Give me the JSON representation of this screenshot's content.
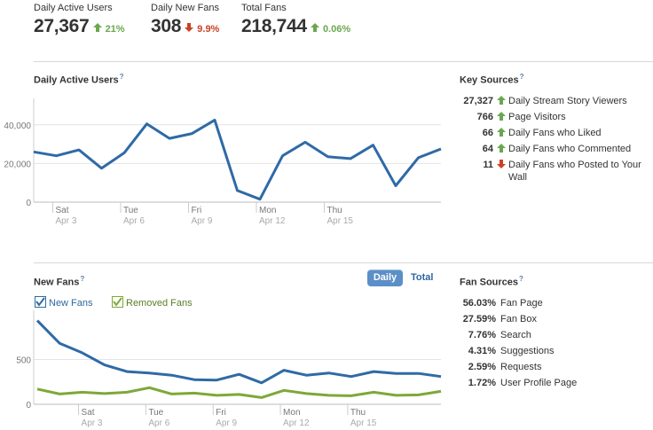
{
  "summary": [
    {
      "label": "Daily Active Users",
      "value": "27,367",
      "change": "21%",
      "direction": "up"
    },
    {
      "label": "Daily New Fans",
      "value": "308",
      "change": "9.9%",
      "direction": "down"
    },
    {
      "label": "Total Fans",
      "value": "218,744",
      "change": "0.06%",
      "direction": "up"
    }
  ],
  "colors": {
    "up": "#6aa84f",
    "down": "#cc4125",
    "blue": "#2f6aa6",
    "green": "#7ea838",
    "link": "#2e67a0"
  },
  "dau_section": {
    "title": "Daily Active Users",
    "help": "?"
  },
  "key_sources": {
    "title": "Key Sources",
    "help": "?",
    "rows": [
      {
        "value": "27,327",
        "direction": "up",
        "label": "Daily Stream Story Viewers"
      },
      {
        "value": "766",
        "direction": "up",
        "label": "Page Visitors"
      },
      {
        "value": "66",
        "direction": "up",
        "label": "Daily Fans who Liked"
      },
      {
        "value": "64",
        "direction": "up",
        "label": "Daily Fans who Commented"
      },
      {
        "value": "11",
        "direction": "down",
        "label": "Daily Fans who Posted to Your Wall"
      }
    ]
  },
  "fans_section": {
    "title": "New Fans",
    "help": "?",
    "toggle_daily": "Daily",
    "toggle_total": "Total",
    "legend": [
      {
        "label": "New Fans",
        "color": "#2f6aa6",
        "checked": true
      },
      {
        "label": "Removed Fans",
        "color": "#7ea838",
        "checked": true
      }
    ]
  },
  "fan_sources": {
    "title": "Fan Sources",
    "help": "?",
    "rows": [
      {
        "value": "56.03%",
        "label": "Fan Page"
      },
      {
        "value": "27.59%",
        "label": "Fan Box"
      },
      {
        "value": "7.76%",
        "label": "Search"
      },
      {
        "value": "4.31%",
        "label": "Suggestions"
      },
      {
        "value": "2.59%",
        "label": "Requests"
      },
      {
        "value": "1.72%",
        "label": "User Profile Page"
      }
    ]
  },
  "chart_data": [
    {
      "type": "line",
      "title": "Daily Active Users",
      "x_ticks": [
        {
          "day": "Sat",
          "date": "Apr 3",
          "index": 1
        },
        {
          "day": "Tue",
          "date": "Apr 6",
          "index": 4
        },
        {
          "day": "Fri",
          "date": "Apr 9",
          "index": 7
        },
        {
          "day": "Mon",
          "date": "Apr 12",
          "index": 10
        },
        {
          "day": "Thu",
          "date": "Apr 15",
          "index": 13
        }
      ],
      "y_ticks": [
        "0",
        "20,000",
        "40,000"
      ],
      "ylim": [
        0,
        50000
      ],
      "grid": true,
      "series": [
        {
          "values": [
            26000,
            24000,
            27000,
            17500,
            25500,
            40500,
            33000,
            35500,
            42500,
            6000,
            1500,
            24000,
            31000,
            23500,
            22500,
            29500,
            8500,
            23000,
            27500
          ]
        }
      ]
    },
    {
      "type": "line",
      "title": "New Fans",
      "x_ticks": [
        {
          "day": "Sat",
          "date": "Apr 3",
          "index": 2
        },
        {
          "day": "Tue",
          "date": "Apr 6",
          "index": 5
        },
        {
          "day": "Fri",
          "date": "Apr 9",
          "index": 8
        },
        {
          "day": "Mon",
          "date": "Apr 12",
          "index": 11
        },
        {
          "day": "Thu",
          "date": "Apr 15",
          "index": 14
        }
      ],
      "y_ticks": [
        "0",
        "500"
      ],
      "ylim": [
        0,
        1000
      ],
      "grid": true,
      "series": [
        {
          "name": "New Fans",
          "color": "#2f6aa6",
          "values": [
            935,
            680,
            575,
            440,
            365,
            350,
            325,
            275,
            270,
            335,
            240,
            380,
            325,
            350,
            310,
            365,
            345,
            345,
            310
          ]
        },
        {
          "name": "Removed Fans",
          "color": "#7ea838",
          "values": [
            170,
            115,
            135,
            120,
            135,
            185,
            115,
            125,
            100,
            110,
            75,
            155,
            120,
            100,
            95,
            135,
            100,
            105,
            145
          ]
        }
      ]
    }
  ]
}
